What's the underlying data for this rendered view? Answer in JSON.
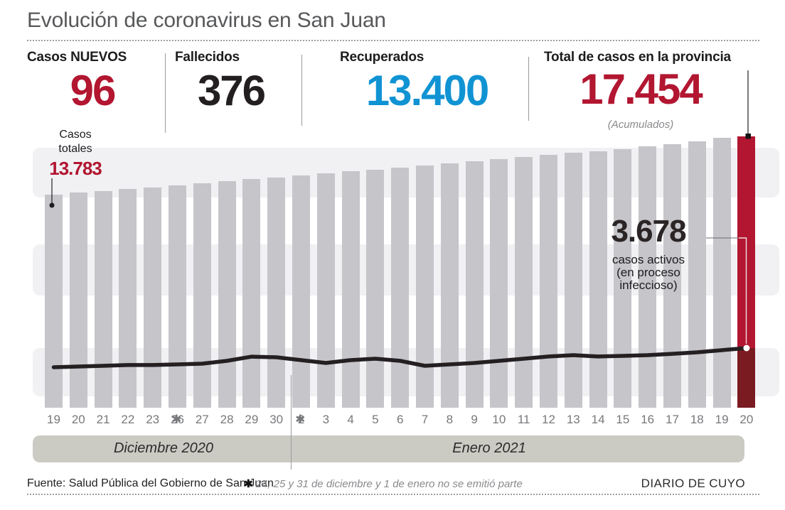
{
  "title": "Evolución de coronavirus en San Juan",
  "stats": [
    {
      "label": "Casos NUEVOS",
      "value": "96"
    },
    {
      "label": "Fallecidos",
      "value": "376"
    },
    {
      "label": "Recuperados",
      "value": "13.400"
    },
    {
      "label": "Total de casos en la provincia",
      "value": "17.454",
      "note": "(Acumulados)"
    }
  ],
  "chart_data": {
    "type": "bar",
    "title": "Evolución de coronavirus en San Juan",
    "x_labels": [
      "19",
      "20",
      "21",
      "22",
      "23",
      "26",
      "27",
      "28",
      "29",
      "30",
      "2",
      "3",
      "4",
      "5",
      "6",
      "7",
      "8",
      "9",
      "10",
      "11",
      "12",
      "13",
      "14",
      "15",
      "16",
      "17",
      "18",
      "19",
      "20"
    ],
    "asterisk_after_indices": [
      4,
      9
    ],
    "marker_symbol": "✱",
    "months": [
      {
        "label": "Diciembre 2020"
      },
      {
        "label": "Enero 2021"
      }
    ],
    "series": [
      {
        "name": "Casos totales (acumulados)",
        "values": [
          13783,
          13906,
          14021,
          14133,
          14245,
          14368,
          14490,
          14617,
          14748,
          14874,
          15000,
          15128,
          15250,
          15372,
          15498,
          15622,
          15748,
          15880,
          16011,
          16142,
          16273,
          16406,
          16538,
          16672,
          16810,
          16960,
          17130,
          17358,
          17454
        ]
      },
      {
        "name": "Casos activos (en proceso infeccioso)",
        "values": [
          2495,
          2540,
          2585,
          2630,
          2630,
          2670,
          2715,
          2890,
          3150,
          3110,
          2935,
          2760,
          2935,
          3020,
          2890,
          2585,
          2670,
          2760,
          2890,
          3020,
          3155,
          3240,
          3155,
          3195,
          3240,
          3325,
          3415,
          3545,
          3678
        ]
      }
    ],
    "value_range_shown": [
      13783,
      17454
    ],
    "active_max": 3678,
    "annotations": {
      "first_bar": {
        "label_lines": [
          "Casos",
          "totales"
        ],
        "value": "13.783"
      },
      "active": {
        "value": "3.678",
        "label_lines": [
          "casos activos",
          "(en proceso",
          "infeccioso)"
        ]
      },
      "final_total": "17.454"
    },
    "grid": "horizontal-bands",
    "legend_position": "none",
    "colors": {
      "bar": "#c5c5ca",
      "bar_final": "#b21630",
      "bar_final_below_line": "#7a1b21",
      "line": "#241f21",
      "background_band": "#f1f1f4",
      "month_band": "#cbcbc4",
      "accent_red": "#b21630",
      "accent_blue": "#1093d3",
      "text_dark": "#1d1d1f",
      "text_gray": "#77787b"
    }
  },
  "footer": {
    "source": "Fuente: Salud Pública del Gobierno de San Juan",
    "footnote_symbol": "✱",
    "footnote": "24, 25 y 31 de diciembre y 1 de enero no se emitió parte",
    "brand": "DIARIO DE CUYO"
  }
}
